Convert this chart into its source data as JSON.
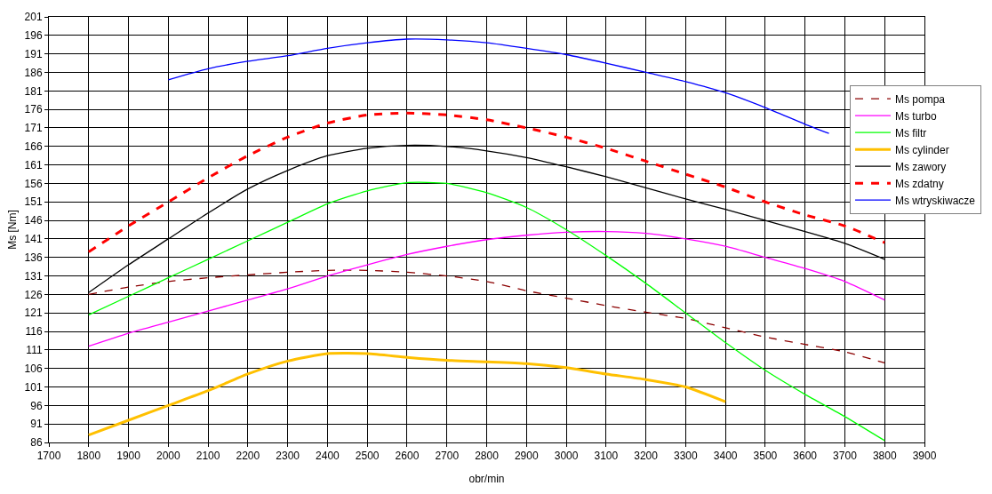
{
  "chart_data": {
    "type": "line",
    "xlabel": "obr/min",
    "ylabel": "Ms [Nm]",
    "x": [
      1800,
      1900,
      2000,
      2100,
      2200,
      2300,
      2400,
      2500,
      2600,
      2700,
      2800,
      2900,
      3000,
      3100,
      3200,
      3300,
      3400,
      3500,
      3600,
      3700,
      3800
    ],
    "series": [
      {
        "name": "Ms pompa",
        "color": "#8b0000",
        "line_style": "dashed",
        "values": [
          126,
          128,
          129.5,
          130.5,
          131.3,
          132,
          132.5,
          132.5,
          132,
          131,
          129.5,
          127,
          125,
          123,
          121.2,
          119.5,
          117,
          114.5,
          112.5,
          110.5,
          107.5
        ]
      },
      {
        "name": "Ms turbo",
        "color": "#ff00ff",
        "values": [
          112,
          115.5,
          118.5,
          121.5,
          124.5,
          127.5,
          131,
          134,
          136.8,
          139,
          140.8,
          142,
          142.8,
          143,
          142.5,
          141,
          139,
          136,
          133,
          129.5,
          124.5
        ]
      },
      {
        "name": "Ms filtr",
        "color": "#00ff00",
        "values": [
          120.5,
          125.5,
          130.5,
          135.5,
          140.5,
          145.5,
          150.5,
          154,
          156.2,
          156,
          153.5,
          149.5,
          143.5,
          136.5,
          129,
          121,
          113,
          105.5,
          99,
          93,
          86.5
        ]
      },
      {
        "name": "Ms cylinder",
        "color": "#ffc000",
        "values": [
          88,
          92,
          96,
          100,
          104.5,
          108,
          110,
          110,
          109,
          108.2,
          107.8,
          107.3,
          106.2,
          104.5,
          103,
          101,
          97,
          null,
          null,
          null,
          null
        ]
      },
      {
        "name": "Ms zawory",
        "color": "#000000",
        "values": [
          126.5,
          134,
          141,
          148,
          154.5,
          159.5,
          163.5,
          165.5,
          166.3,
          166,
          164.8,
          163,
          160.5,
          157.8,
          154.8,
          151.8,
          149,
          146,
          143,
          139.8,
          135.5
        ]
      },
      {
        "name": "Ms zdatny",
        "color": "#ff0000",
        "line_style": "dashed",
        "values": [
          137.5,
          144.5,
          151,
          157.5,
          163.5,
          168.5,
          172.3,
          174.5,
          175,
          174.5,
          173.2,
          171,
          168.5,
          165.5,
          162,
          158.5,
          155,
          151,
          147.5,
          144.5,
          140
        ]
      },
      {
        "name": "Ms wtryskiwacze",
        "color": "#0000ff",
        "x": [
          2000,
          2100,
          2200,
          2300,
          2400,
          2500,
          2600,
          2700,
          2800,
          2900,
          3000,
          3100,
          3200,
          3300,
          3400,
          3500,
          3600,
          3660
        ],
        "values": [
          184,
          187,
          189,
          190.5,
          192.5,
          194,
          195,
          194.8,
          194,
          192.5,
          190.8,
          188.5,
          186,
          183.5,
          180.5,
          176.5,
          172,
          169.5
        ]
      }
    ],
    "xlim": [
      1700,
      3900
    ],
    "xticks": [
      1700,
      1800,
      1900,
      2000,
      2100,
      2200,
      2300,
      2400,
      2500,
      2600,
      2700,
      2800,
      2900,
      3000,
      3100,
      3200,
      3300,
      3400,
      3500,
      3600,
      3700,
      3800,
      3900
    ],
    "ylim": [
      86,
      201
    ],
    "yticks": [
      86,
      91,
      96,
      101,
      106,
      111,
      116,
      121,
      126,
      131,
      136,
      141,
      146,
      151,
      156,
      161,
      166,
      171,
      176,
      181,
      186,
      191,
      196,
      201
    ],
    "grid": true,
    "legend": "top right",
    "marker": "none"
  }
}
